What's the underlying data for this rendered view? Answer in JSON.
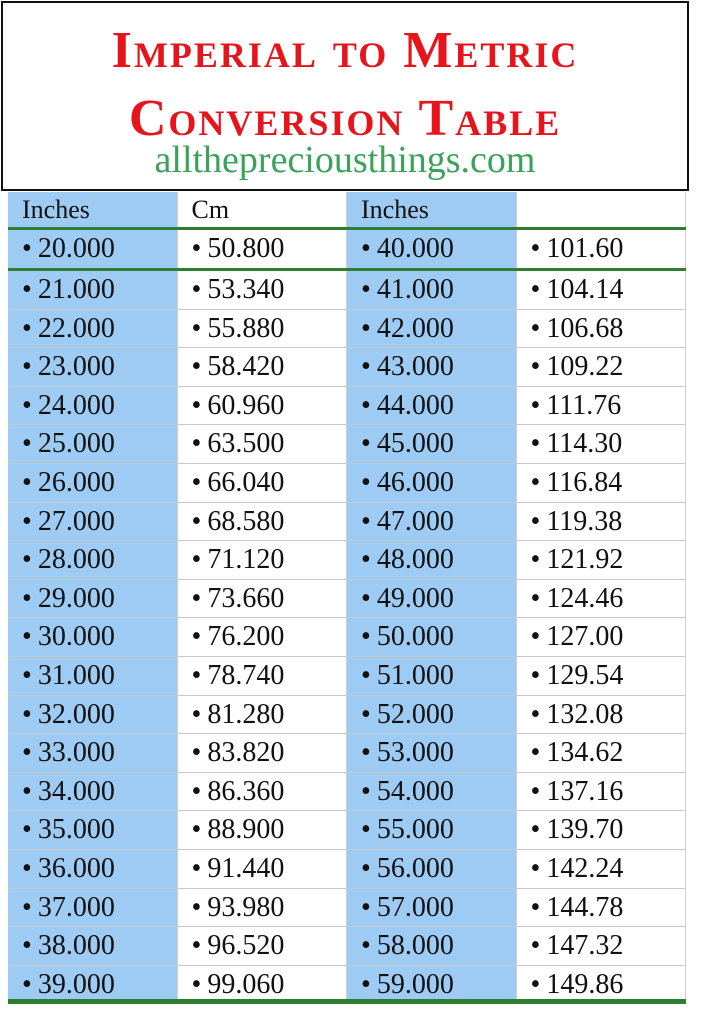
{
  "title": {
    "line1": "Imperial to Metric",
    "line2": "Conversion Table",
    "website": "allthepreciousthings.com"
  },
  "colors": {
    "title": "#e8141c",
    "website": "#3aa35a",
    "inches_column": "#9ecbf4",
    "rule": "#2d7d32"
  },
  "bullet": "•",
  "headers": [
    "Inches",
    "Cm",
    "Inches",
    ""
  ],
  "rows": [
    [
      "20.000",
      "50.800",
      "40.000",
      "101.60"
    ],
    [
      "21.000",
      "53.340",
      "41.000",
      "104.14"
    ],
    [
      "22.000",
      "55.880",
      "42.000",
      "106.68"
    ],
    [
      "23.000",
      "58.420",
      "43.000",
      "109.22"
    ],
    [
      "24.000",
      "60.960",
      "44.000",
      "111.76"
    ],
    [
      "25.000",
      "63.500",
      "45.000",
      "114.30"
    ],
    [
      "26.000",
      "66.040",
      "46.000",
      "116.84"
    ],
    [
      "27.000",
      "68.580",
      "47.000",
      "119.38"
    ],
    [
      "28.000",
      "71.120",
      "48.000",
      "121.92"
    ],
    [
      "29.000",
      "73.660",
      "49.000",
      "124.46"
    ],
    [
      "30.000",
      "76.200",
      "50.000",
      "127.00"
    ],
    [
      "31.000",
      "78.740",
      "51.000",
      "129.54"
    ],
    [
      "32.000",
      "81.280",
      "52.000",
      "132.08"
    ],
    [
      "33.000",
      "83.820",
      "53.000",
      "134.62"
    ],
    [
      "34.000",
      "86.360",
      "54.000",
      "137.16"
    ],
    [
      "35.000",
      "88.900",
      "55.000",
      "139.70"
    ],
    [
      "36.000",
      "91.440",
      "56.000",
      "142.24"
    ],
    [
      "37.000",
      "93.980",
      "57.000",
      "144.78"
    ],
    [
      "38.000",
      "96.520",
      "58.000",
      "147.32"
    ],
    [
      "39.000",
      "99.060",
      "59.000",
      "149.86"
    ]
  ]
}
